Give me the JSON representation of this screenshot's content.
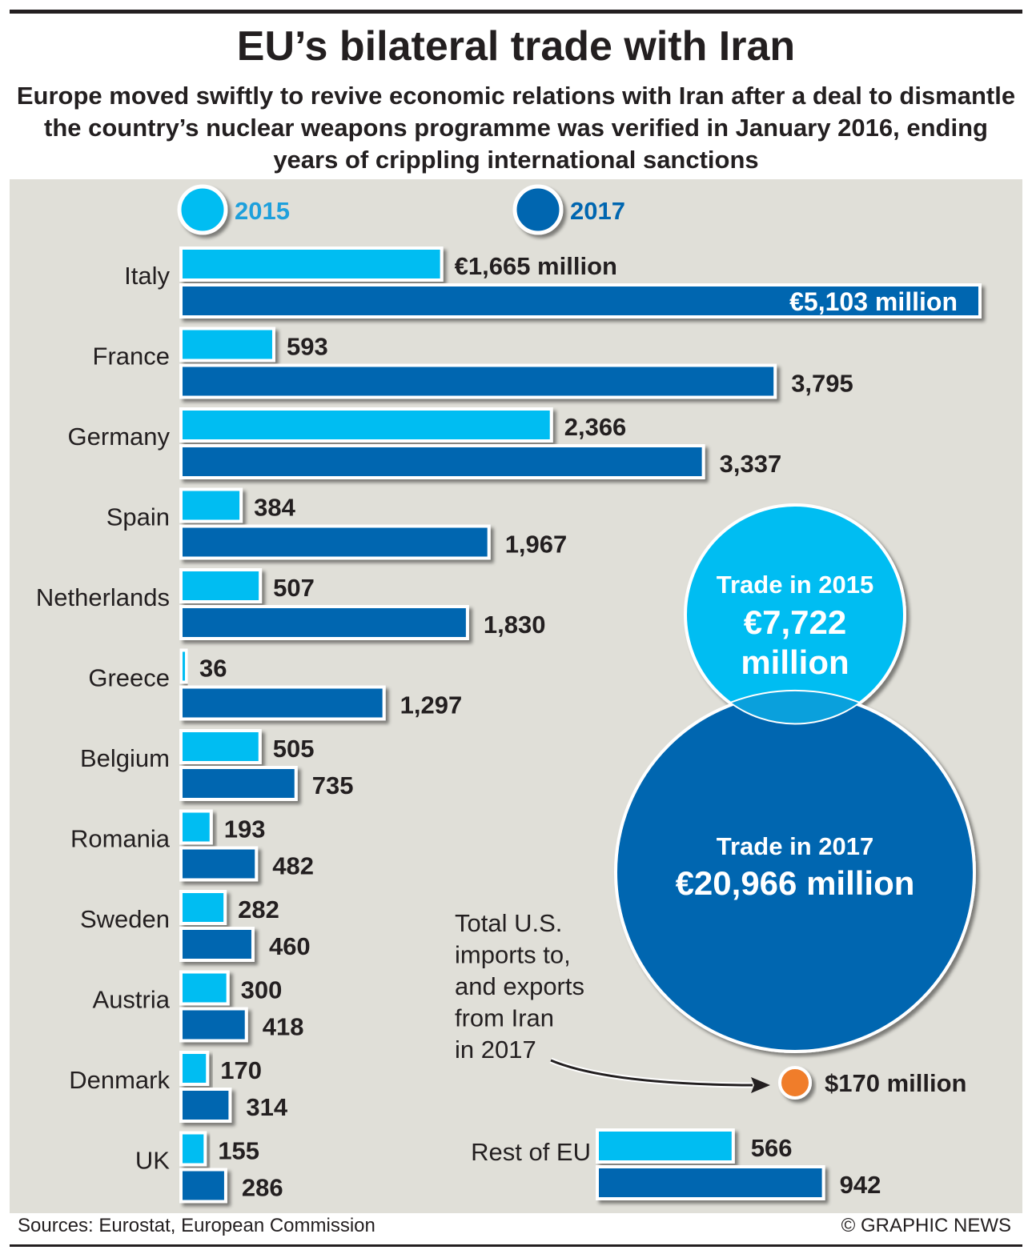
{
  "title": "EU’s bilateral trade with Iran",
  "subtitle": "Europe moved swiftly to revive economic relations with Iran after a deal to dismantle the country’s nuclear weapons programme was verified in January 2016, ending years of crippling international sanctions",
  "colors": {
    "y2015": "#00bdf2",
    "y2017": "#0066b0",
    "us": "#f07d2a",
    "bg": "#e0dfd8"
  },
  "chart_data": {
    "type": "bar",
    "orientation": "horizontal",
    "unit": "€ million",
    "legend": [
      "2015",
      "2017"
    ],
    "categories": [
      "Italy",
      "France",
      "Germany",
      "Spain",
      "Netherlands",
      "Greece",
      "Belgium",
      "Romania",
      "Sweden",
      "Austria",
      "Denmark",
      "UK"
    ],
    "series": [
      {
        "name": "2015",
        "values": [
          1665,
          593,
          2366,
          384,
          507,
          36,
          505,
          193,
          282,
          300,
          170,
          155
        ],
        "labels": [
          "€1,665 million",
          "593",
          "2,366",
          "384",
          "507",
          "36",
          "505",
          "193",
          "282",
          "300",
          "170",
          "155"
        ]
      },
      {
        "name": "2017",
        "values": [
          5103,
          3795,
          3337,
          1967,
          1830,
          1297,
          735,
          482,
          460,
          418,
          314,
          286
        ],
        "labels": [
          "€5,103 million",
          "3,795",
          "3,337",
          "1,967",
          "1,830",
          "1,297",
          "735",
          "482",
          "460",
          "418",
          "314",
          "286"
        ]
      }
    ],
    "rest_of_eu": {
      "label": "Rest of EU",
      "values": [
        566,
        942
      ],
      "labels": [
        "566",
        "942"
      ]
    },
    "totals": [
      {
        "title": "Trade in 2015",
        "value_line1": "€7,722",
        "value_line2": "million",
        "value": 7722
      },
      {
        "title": "Trade in 2017",
        "value_text": "€20,966 million",
        "value": 20966
      }
    ],
    "us_note": {
      "lines": [
        "Total U.S.",
        "imports to,",
        "and exports",
        "from Iran",
        "in 2017"
      ],
      "value_text": "$170 million",
      "value": 170
    }
  },
  "footer": {
    "source": "Sources: Eurostat, European Commission",
    "credit": "© GRAPHIC NEWS"
  }
}
